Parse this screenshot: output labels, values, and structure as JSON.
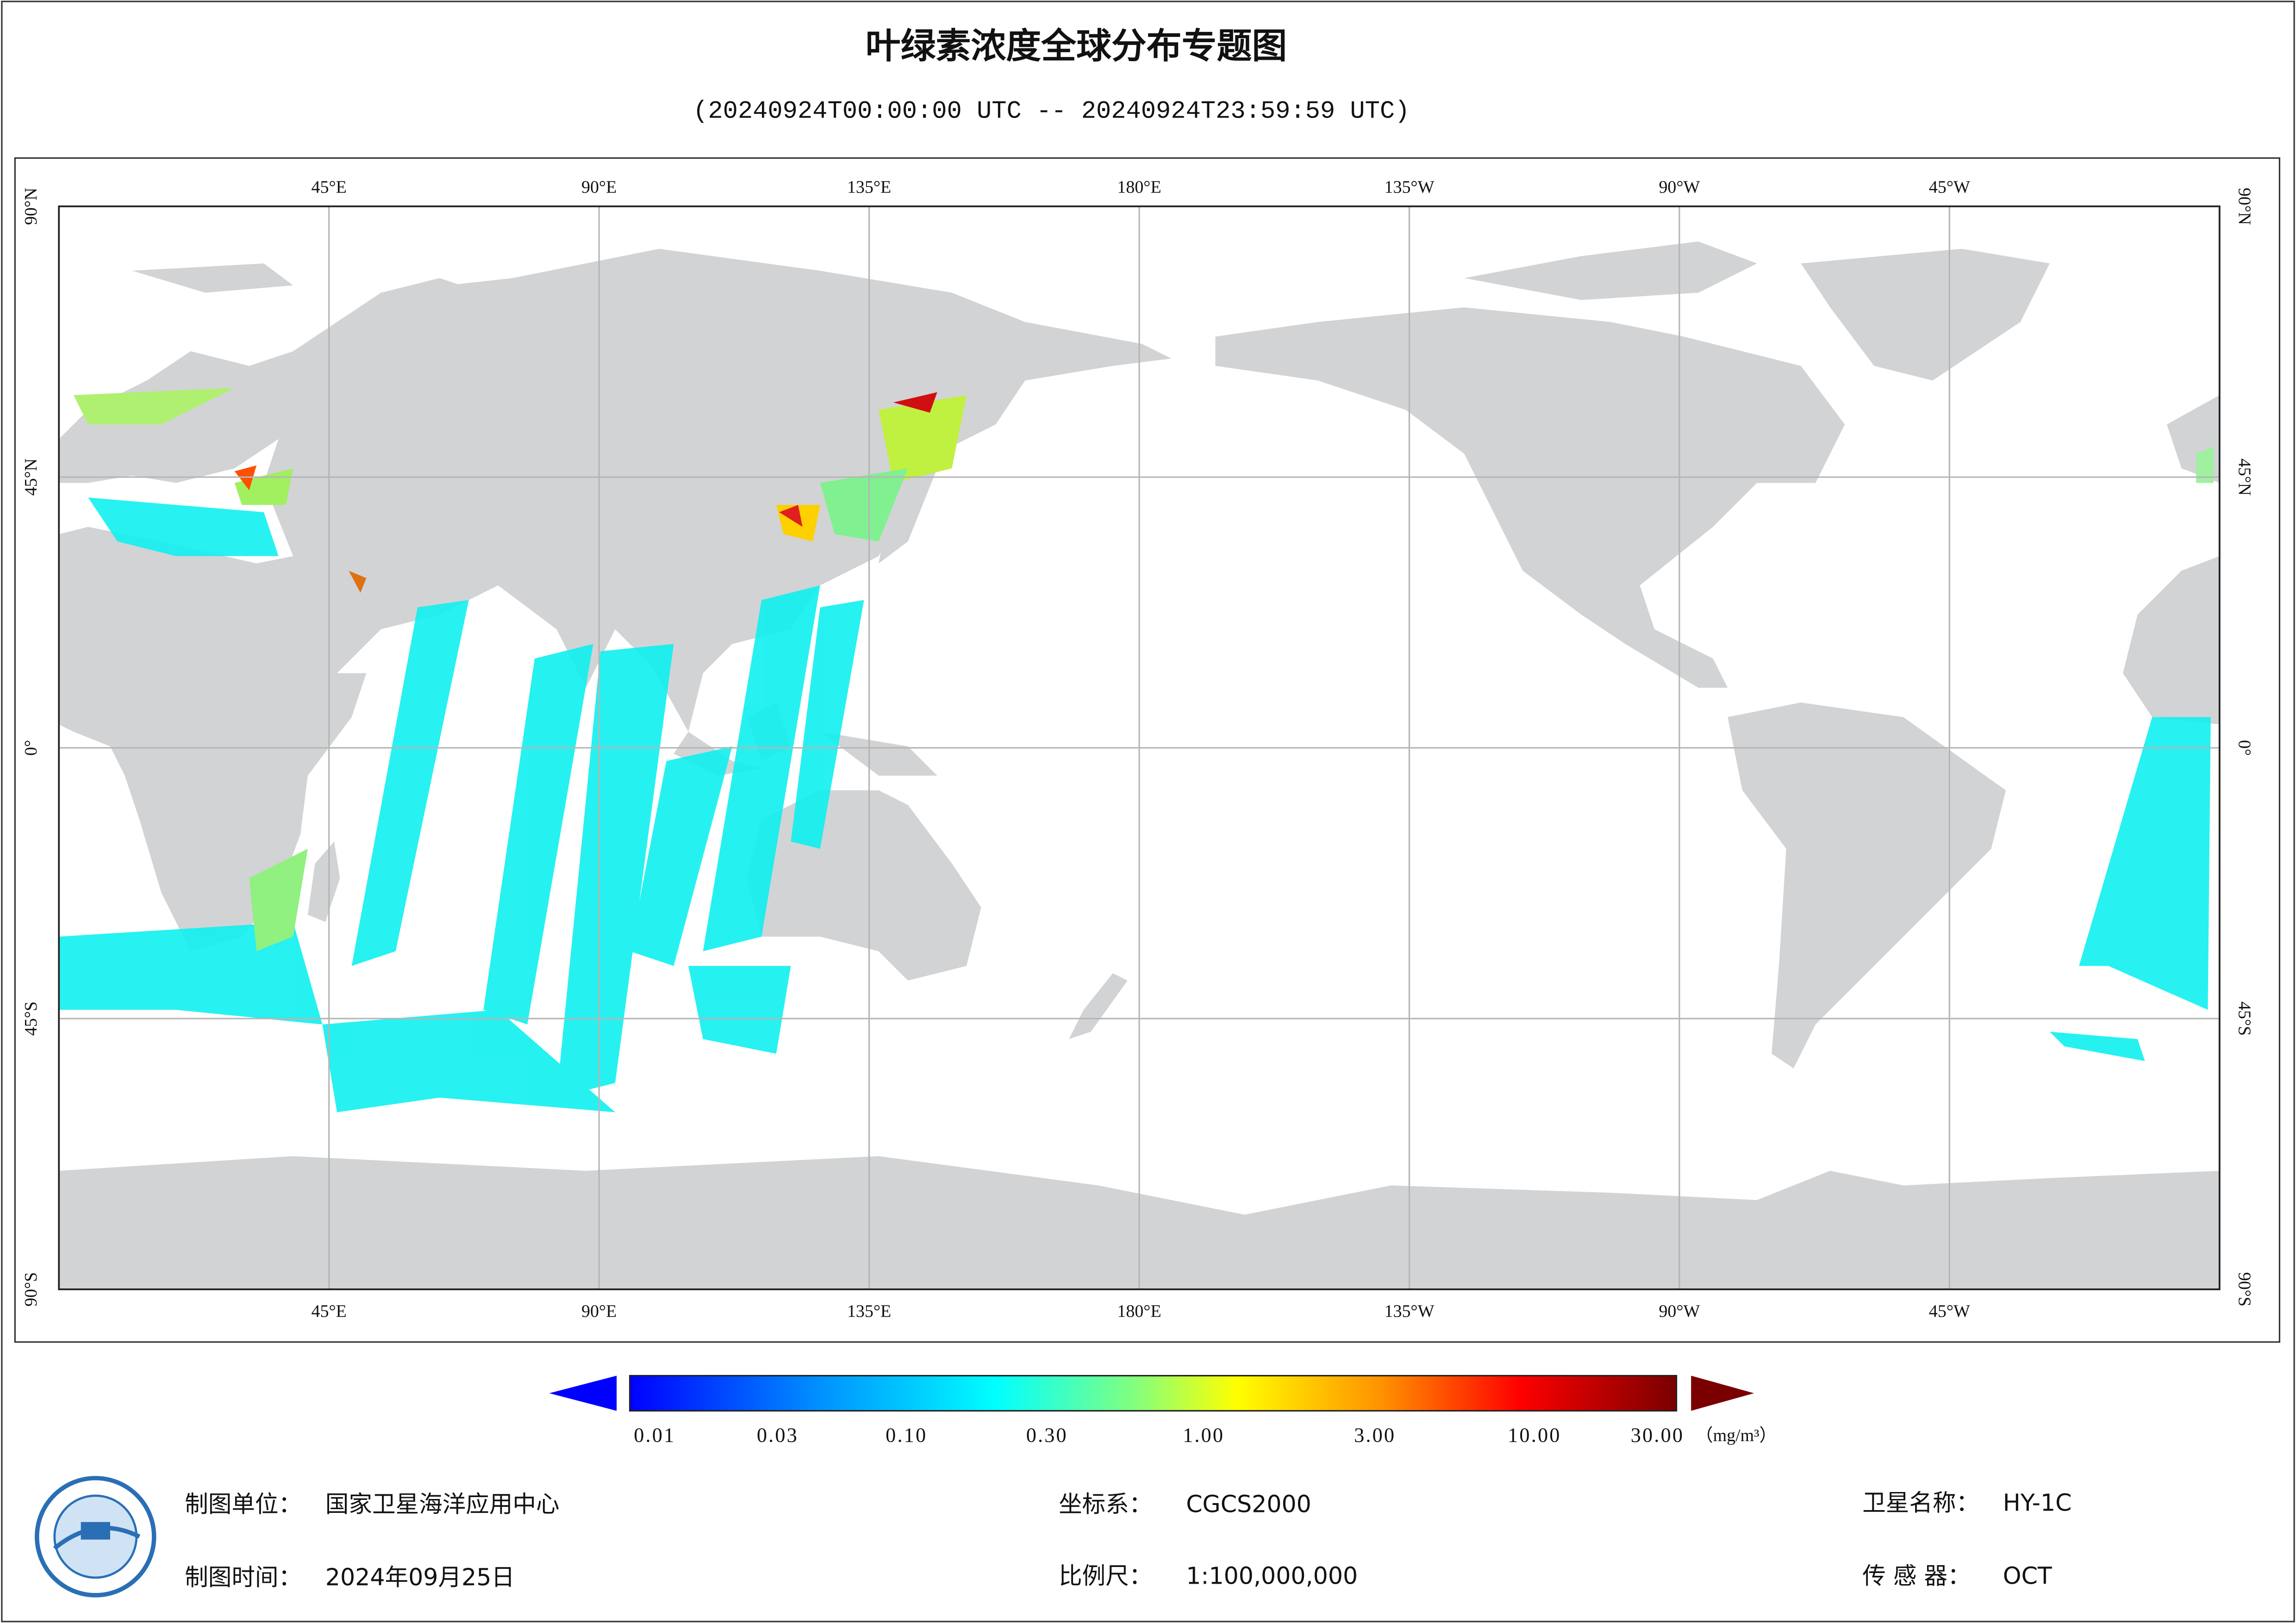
{
  "header": {
    "title": "叶绿素浓度全球分布专题图",
    "subtitle": "(20240924T00:00:00 UTC -- 20240924T23:59:59 UTC)"
  },
  "map": {
    "lon_labels": [
      "45°E",
      "90°E",
      "135°E",
      "180°E",
      "135°W",
      "90°W",
      "45°W"
    ],
    "lat_labels": [
      "90°N",
      "45°N",
      "0°",
      "45°S",
      "90°S"
    ]
  },
  "colorbar": {
    "labels": [
      "0.01",
      "0.03",
      "0.10",
      "0.30",
      "1.00",
      "3.00",
      "10.00",
      "30.00"
    ],
    "unit": "（mg/m³）"
  },
  "footer": {
    "unit": {
      "label": "制图单位：",
      "value": "国家卫星海洋应用中心"
    },
    "date": {
      "label": "制图时间：",
      "value": "2024年09月25日"
    },
    "crs": {
      "label": "坐标系：",
      "value": "CGCS2000"
    },
    "scale": {
      "label": "比例尺：",
      "value": "1:100,000,000"
    },
    "satellite": {
      "label": "卫星名称：",
      "value": "HY-1C"
    },
    "sensor": {
      "label": "传 感 器：",
      "value": "OCT"
    }
  }
}
